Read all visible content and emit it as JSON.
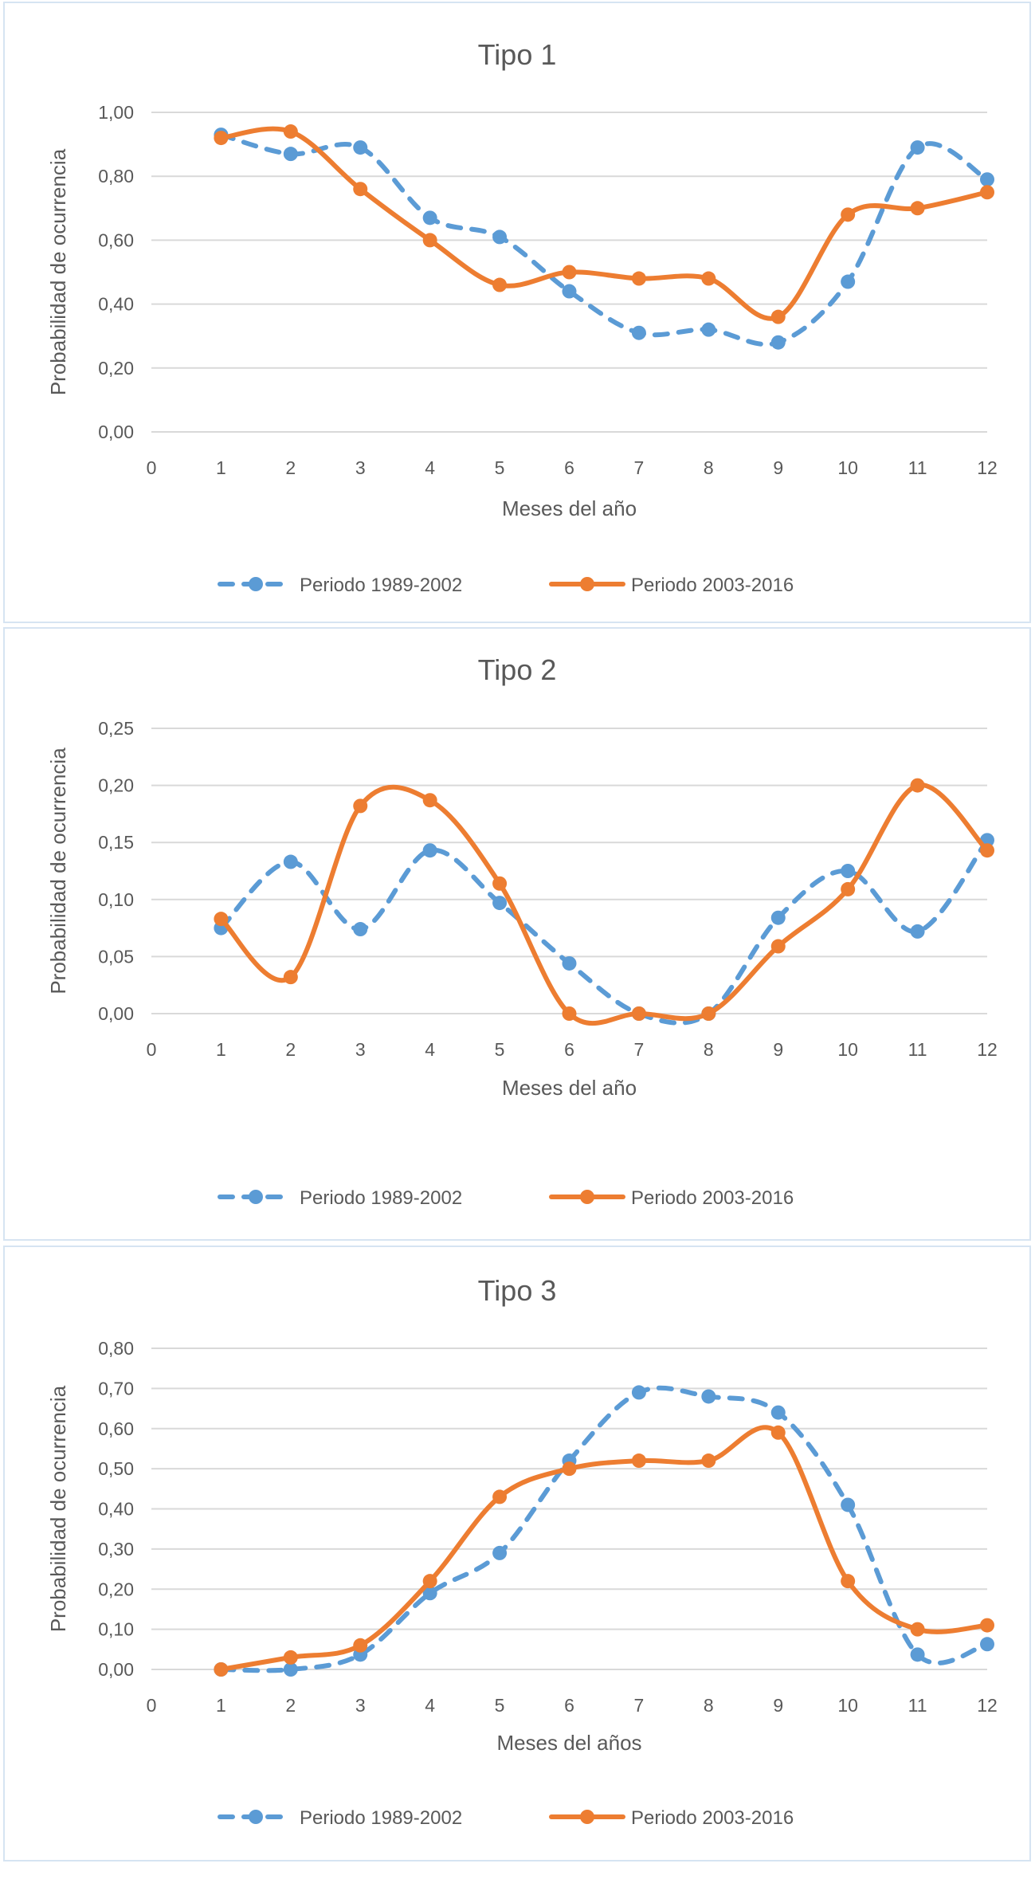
{
  "chart_data": [
    {
      "type": "line",
      "title": "Tipo 1",
      "xlabel": "Meses del año",
      "ylabel": "Probabilidad de ocurrencia",
      "x": [
        1,
        2,
        3,
        4,
        5,
        6,
        7,
        8,
        9,
        10,
        11,
        12
      ],
      "xticks": [
        "0",
        "1",
        "2",
        "3",
        "4",
        "5",
        "6",
        "7",
        "8",
        "9",
        "10",
        "11",
        "12"
      ],
      "xlim": [
        0,
        12
      ],
      "ylim": [
        0,
        1
      ],
      "yticks": [
        "0,00",
        "0,20",
        "0,40",
        "0,60",
        "0,80",
        "1,00"
      ],
      "ytick_values": [
        0,
        0.2,
        0.4,
        0.6,
        0.8,
        1.0
      ],
      "grid": true,
      "legend": "bottom",
      "smooth": true,
      "series": [
        {
          "name": "Periodo 1989-2002",
          "color": "#5b9bd5",
          "style": "dashed",
          "values": [
            0.93,
            0.87,
            0.89,
            0.67,
            0.61,
            0.44,
            0.31,
            0.32,
            0.28,
            0.47,
            0.89,
            0.79
          ]
        },
        {
          "name": "Periodo 2003-2016",
          "color": "#ed7d31",
          "style": "solid",
          "values": [
            0.92,
            0.94,
            0.76,
            0.6,
            0.46,
            0.5,
            0.48,
            0.48,
            0.36,
            0.68,
            0.7,
            0.75
          ]
        }
      ]
    },
    {
      "type": "line",
      "title": "Tipo 2",
      "xlabel": "Meses del año",
      "ylabel": "Probabilidad de ocurrencia",
      "x": [
        1,
        2,
        3,
        4,
        5,
        6,
        7,
        8,
        9,
        10,
        11,
        12
      ],
      "xticks": [
        "0",
        "1",
        "2",
        "3",
        "4",
        "5",
        "6",
        "7",
        "8",
        "9",
        "10",
        "11",
        "12"
      ],
      "xlim": [
        0,
        12
      ],
      "ylim": [
        0,
        0.25
      ],
      "yticks": [
        "0,00",
        "0,05",
        "0,10",
        "0,15",
        "0,20",
        "0,25"
      ],
      "ytick_values": [
        0,
        0.05,
        0.1,
        0.15,
        0.2,
        0.25
      ],
      "grid": true,
      "legend": "bottom",
      "smooth": true,
      "series": [
        {
          "name": "Periodo 1989-2002",
          "color": "#5b9bd5",
          "style": "dashed",
          "values": [
            0.075,
            0.133,
            0.074,
            0.143,
            0.097,
            0.044,
            0,
            0,
            0.084,
            0.125,
            0.072,
            0.152
          ]
        },
        {
          "name": "Periodo 2003-2016",
          "color": "#ed7d31",
          "style": "solid",
          "values": [
            0.083,
            0.032,
            0.182,
            0.187,
            0.114,
            0,
            0,
            0,
            0.059,
            0.109,
            0.2,
            0.143
          ]
        }
      ]
    },
    {
      "type": "line",
      "title": "Tipo 3",
      "xlabel": "Meses del años",
      "ylabel": "Probabilidad de ocurrencia",
      "x": [
        1,
        2,
        3,
        4,
        5,
        6,
        7,
        8,
        9,
        10,
        11,
        12
      ],
      "xticks": [
        "0",
        "1",
        "2",
        "3",
        "4",
        "5",
        "6",
        "7",
        "8",
        "9",
        "10",
        "11",
        "12"
      ],
      "xlim": [
        0,
        12
      ],
      "ylim": [
        0,
        0.8
      ],
      "yticks": [
        "0,00",
        "0,10",
        "0,20",
        "0,30",
        "0,40",
        "0,50",
        "0,60",
        "0,70",
        "0,80"
      ],
      "ytick_values": [
        0,
        0.1,
        0.2,
        0.3,
        0.4,
        0.5,
        0.6,
        0.7,
        0.8
      ],
      "grid": true,
      "legend": "bottom",
      "smooth": true,
      "series": [
        {
          "name": "Periodo 1989-2002",
          "color": "#5b9bd5",
          "style": "dashed",
          "values": [
            0,
            0,
            0.037,
            0.19,
            0.29,
            0.52,
            0.69,
            0.68,
            0.64,
            0.41,
            0.037,
            0.063
          ]
        },
        {
          "name": "Periodo 2003-2016",
          "color": "#ed7d31",
          "style": "solid",
          "values": [
            0,
            0.03,
            0.06,
            0.22,
            0.43,
            0.5,
            0.52,
            0.52,
            0.59,
            0.22,
            0.1,
            0.11
          ]
        }
      ]
    }
  ]
}
